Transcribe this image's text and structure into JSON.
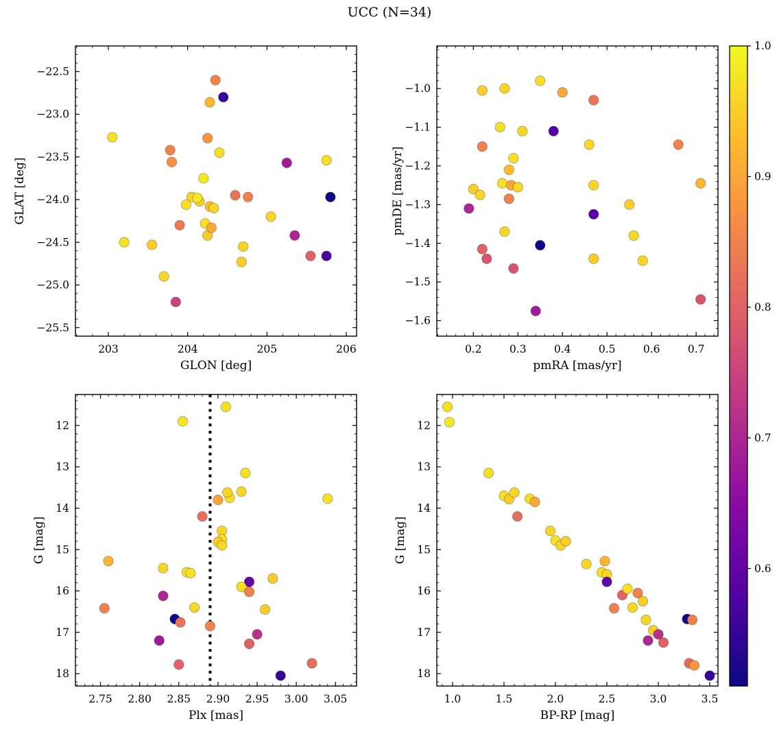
{
  "title": "UCC (N=34)",
  "colorbar": {
    "colormap": "plasma",
    "vmin": 0.51,
    "vmax": 1.0,
    "tick_values": [
      1.0,
      0.9,
      0.8,
      0.7,
      0.6
    ],
    "tick_labels": [
      "1.0",
      "0.9",
      "0.8",
      "0.7",
      "0.6"
    ],
    "stops": [
      [
        0.0,
        13,
        8,
        135
      ],
      [
        0.1428,
        84,
        2,
        163
      ],
      [
        0.2857,
        139,
        10,
        165
      ],
      [
        0.4286,
        185,
        50,
        137
      ],
      [
        0.5714,
        219,
        92,
        104
      ],
      [
        0.7143,
        244,
        136,
        73
      ],
      [
        0.8571,
        254,
        188,
        43
      ],
      [
        1.0,
        240,
        249,
        33
      ]
    ]
  },
  "chart_data": [
    {
      "id": "glon-glat",
      "type": "scatter",
      "xlabel": "GLON [deg]",
      "ylabel": "GLAT [deg]",
      "xlim": [
        202.585,
        206.13
      ],
      "ylim": [
        -25.6,
        -22.2
      ],
      "xtick_values": [
        203,
        204,
        205,
        206
      ],
      "xtick_labels": [
        "203",
        "204",
        "205",
        "206"
      ],
      "ytick_values": [
        -25.5,
        -25.0,
        -24.5,
        -24.0,
        -23.5,
        -23.0,
        -22.5
      ],
      "ytick_labels": [
        "−25.5",
        "−25.0",
        "−24.5",
        "−24.0",
        "−23.5",
        "−23.0",
        "−22.5"
      ],
      "points": [
        [
          204.35,
          -22.6,
          0.85
        ],
        [
          204.45,
          -22.8,
          0.55
        ],
        [
          204.28,
          -22.86,
          0.92
        ],
        [
          203.05,
          -23.27,
          0.97
        ],
        [
          204.25,
          -23.28,
          0.88
        ],
        [
          203.78,
          -23.42,
          0.85
        ],
        [
          203.8,
          -23.56,
          0.87
        ],
        [
          204.4,
          -23.45,
          0.97
        ],
        [
          205.25,
          -23.57,
          0.68
        ],
        [
          205.75,
          -23.54,
          0.97
        ],
        [
          204.2,
          -23.75,
          0.98
        ],
        [
          204.05,
          -23.97,
          0.96
        ],
        [
          204.15,
          -24.02,
          0.95
        ],
        [
          204.6,
          -23.95,
          0.83
        ],
        [
          204.76,
          -23.97,
          0.85
        ],
        [
          205.8,
          -23.97,
          0.5
        ],
        [
          203.98,
          -24.06,
          0.97
        ],
        [
          204.12,
          -23.98,
          0.98
        ],
        [
          204.28,
          -24.08,
          0.93
        ],
        [
          203.9,
          -24.3,
          0.84
        ],
        [
          204.22,
          -24.28,
          0.97
        ],
        [
          205.05,
          -24.2,
          0.96
        ],
        [
          204.25,
          -24.42,
          0.95
        ],
        [
          204.3,
          -24.33,
          0.9
        ],
        [
          205.35,
          -24.42,
          0.7
        ],
        [
          203.2,
          -24.5,
          0.97
        ],
        [
          203.55,
          -24.53,
          0.95
        ],
        [
          204.7,
          -24.55,
          0.96
        ],
        [
          205.55,
          -24.66,
          0.8
        ],
        [
          205.75,
          -24.66,
          0.57
        ],
        [
          204.68,
          -24.73,
          0.95
        ],
        [
          203.7,
          -24.9,
          0.96
        ],
        [
          203.85,
          -25.2,
          0.75
        ],
        [
          204.33,
          -24.1,
          0.96
        ]
      ]
    },
    {
      "id": "pmra-pmde",
      "type": "scatter",
      "xlabel": "pmRA [mas/yr]",
      "ylabel": "pmDE [mas/yr]",
      "xlim": [
        0.118,
        0.749
      ],
      "ylim": [
        -1.64,
        -0.89
      ],
      "xtick_values": [
        0.2,
        0.3,
        0.4,
        0.5,
        0.6,
        0.7
      ],
      "xtick_labels": [
        "0.2",
        "0.3",
        "0.4",
        "0.5",
        "0.6",
        "0.7"
      ],
      "ytick_values": [
        -1.6,
        -1.5,
        -1.4,
        -1.3,
        -1.2,
        -1.1,
        -1.0
      ],
      "ytick_labels": [
        "−1.6",
        "−1.5",
        "−1.4",
        "−1.3",
        "−1.2",
        "−1.1",
        "−1.0"
      ],
      "points": [
        [
          0.35,
          -0.98,
          0.97
        ],
        [
          0.27,
          -1.0,
          0.96
        ],
        [
          0.22,
          -1.005,
          0.95
        ],
        [
          0.4,
          -1.01,
          0.9
        ],
        [
          0.47,
          -1.03,
          0.83
        ],
        [
          0.26,
          -1.1,
          0.97
        ],
        [
          0.31,
          -1.11,
          0.96
        ],
        [
          0.38,
          -1.11,
          0.58
        ],
        [
          0.22,
          -1.15,
          0.85
        ],
        [
          0.46,
          -1.145,
          0.96
        ],
        [
          0.66,
          -1.145,
          0.85
        ],
        [
          0.29,
          -1.18,
          0.97
        ],
        [
          0.28,
          -1.21,
          0.93
        ],
        [
          0.47,
          -1.25,
          0.96
        ],
        [
          0.2,
          -1.26,
          0.95
        ],
        [
          0.215,
          -1.275,
          0.96
        ],
        [
          0.265,
          -1.245,
          0.97
        ],
        [
          0.285,
          -1.25,
          0.9
        ],
        [
          0.71,
          -1.245,
          0.92
        ],
        [
          0.28,
          -1.285,
          0.85
        ],
        [
          0.19,
          -1.31,
          0.7
        ],
        [
          0.47,
          -1.325,
          0.58
        ],
        [
          0.55,
          -1.3,
          0.95
        ],
        [
          0.27,
          -1.37,
          0.96
        ],
        [
          0.22,
          -1.415,
          0.8
        ],
        [
          0.35,
          -1.405,
          0.5
        ],
        [
          0.56,
          -1.38,
          0.96
        ],
        [
          0.23,
          -1.44,
          0.78
        ],
        [
          0.29,
          -1.465,
          0.78
        ],
        [
          0.47,
          -1.44,
          0.95
        ],
        [
          0.58,
          -1.445,
          0.96
        ],
        [
          0.34,
          -1.575,
          0.68
        ],
        [
          0.71,
          -1.545,
          0.78
        ],
        [
          0.3,
          -1.255,
          0.96
        ]
      ]
    },
    {
      "id": "plx-g",
      "type": "scatter",
      "xlabel": "Plx [mas]",
      "ylabel": "G [mag]",
      "xlim": [
        2.718,
        3.077
      ],
      "ylim": [
        18.3,
        11.25
      ],
      "xtick_values": [
        2.75,
        2.8,
        2.85,
        2.9,
        2.95,
        3.0,
        3.05
      ],
      "xtick_labels": [
        "2.75",
        "2.80",
        "2.85",
        "2.90",
        "2.95",
        "3.00",
        "3.05"
      ],
      "ytick_values": [
        12,
        13,
        14,
        15,
        16,
        17,
        18
      ],
      "ytick_labels": [
        "12",
        "13",
        "14",
        "15",
        "16",
        "17",
        "18"
      ],
      "vline": 2.89,
      "points": [
        [
          2.91,
          11.55,
          0.97
        ],
        [
          2.855,
          11.9,
          0.98
        ],
        [
          2.935,
          13.15,
          0.97
        ],
        [
          2.93,
          13.6,
          0.96
        ],
        [
          2.915,
          13.75,
          0.97
        ],
        [
          2.9,
          13.8,
          0.9
        ],
        [
          3.04,
          13.77,
          0.97
        ],
        [
          2.88,
          14.2,
          0.82
        ],
        [
          2.905,
          14.55,
          0.96
        ],
        [
          2.905,
          14.75,
          0.97
        ],
        [
          2.9,
          14.82,
          0.95
        ],
        [
          2.905,
          14.9,
          0.96
        ],
        [
          2.76,
          15.28,
          0.92
        ],
        [
          2.83,
          15.45,
          0.96
        ],
        [
          2.86,
          15.55,
          0.97
        ],
        [
          2.97,
          15.7,
          0.95
        ],
        [
          2.94,
          15.78,
          0.6
        ],
        [
          2.93,
          15.9,
          0.97
        ],
        [
          2.94,
          16.02,
          0.85
        ],
        [
          2.83,
          16.12,
          0.7
        ],
        [
          2.755,
          16.42,
          0.85
        ],
        [
          2.87,
          16.4,
          0.96
        ],
        [
          2.96,
          16.45,
          0.95
        ],
        [
          2.845,
          16.68,
          0.5
        ],
        [
          2.852,
          16.76,
          0.83
        ],
        [
          2.89,
          16.85,
          0.85
        ],
        [
          2.825,
          17.2,
          0.68
        ],
        [
          2.95,
          17.05,
          0.72
        ],
        [
          2.94,
          17.28,
          0.8
        ],
        [
          2.85,
          17.78,
          0.8
        ],
        [
          3.02,
          17.75,
          0.82
        ],
        [
          2.98,
          18.05,
          0.55
        ],
        [
          2.865,
          15.57,
          0.97
        ],
        [
          2.912,
          13.62,
          0.96
        ]
      ]
    },
    {
      "id": "bprp-g",
      "type": "scatter",
      "xlabel": "BP-RP [mag]",
      "ylabel": "G [mag]",
      "xlim": [
        0.847,
        3.58
      ],
      "ylim": [
        18.3,
        11.25
      ],
      "xtick_values": [
        1.0,
        1.5,
        2.0,
        2.5,
        3.0,
        3.5
      ],
      "xtick_labels": [
        "1.0",
        "1.5",
        "2.0",
        "2.5",
        "3.0",
        "3.5"
      ],
      "ytick_values": [
        12,
        13,
        14,
        15,
        16,
        17,
        18
      ],
      "ytick_labels": [
        "12",
        "13",
        "14",
        "15",
        "16",
        "17",
        "18"
      ],
      "points": [
        [
          0.95,
          11.55,
          0.97
        ],
        [
          0.97,
          11.92,
          0.98
        ],
        [
          1.35,
          13.15,
          0.97
        ],
        [
          1.5,
          13.7,
          0.97
        ],
        [
          1.55,
          13.78,
          0.95
        ],
        [
          1.6,
          13.62,
          0.96
        ],
        [
          1.63,
          14.2,
          0.82
        ],
        [
          1.75,
          13.77,
          0.97
        ],
        [
          1.8,
          13.85,
          0.9
        ],
        [
          1.95,
          14.55,
          0.96
        ],
        [
          2.0,
          14.78,
          0.97
        ],
        [
          2.05,
          14.9,
          0.96
        ],
        [
          2.1,
          14.8,
          0.95
        ],
        [
          2.3,
          15.35,
          0.96
        ],
        [
          2.45,
          15.55,
          0.97
        ],
        [
          2.48,
          15.28,
          0.92
        ],
        [
          2.5,
          15.6,
          0.96
        ],
        [
          2.5,
          15.78,
          0.6
        ],
        [
          2.57,
          16.42,
          0.85
        ],
        [
          2.65,
          16.1,
          0.8
        ],
        [
          2.7,
          15.95,
          0.97
        ],
        [
          2.75,
          16.4,
          0.96
        ],
        [
          2.8,
          16.05,
          0.85
        ],
        [
          2.85,
          16.25,
          0.95
        ],
        [
          2.88,
          16.7,
          0.96
        ],
        [
          2.9,
          17.2,
          0.7
        ],
        [
          2.95,
          16.95,
          0.95
        ],
        [
          3.0,
          17.05,
          0.72
        ],
        [
          3.05,
          17.25,
          0.8
        ],
        [
          3.28,
          16.68,
          0.5
        ],
        [
          3.33,
          16.7,
          0.85
        ],
        [
          3.3,
          17.75,
          0.82
        ],
        [
          3.35,
          17.8,
          0.88
        ],
        [
          3.5,
          18.05,
          0.55
        ]
      ]
    }
  ]
}
